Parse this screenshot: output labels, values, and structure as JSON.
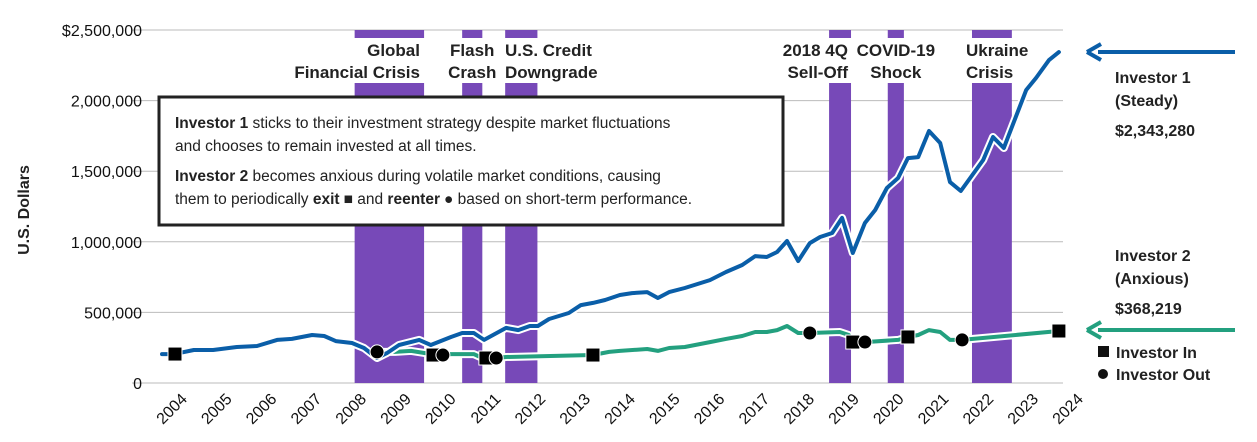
{
  "chart_data": {
    "type": "line",
    "ylabel": "U.S. Dollars",
    "ylim": [
      0,
      2500000
    ],
    "xlim": [
      2004,
      2024
    ],
    "grid": true,
    "y_ticks": [
      "$2,500,000",
      "2,000,000",
      "1,500,000",
      "1,000,000",
      "500,000",
      "0"
    ],
    "y_tick_values": [
      2500000,
      2000000,
      1500000,
      1000000,
      500000,
      0
    ],
    "x_ticks": [
      "2004",
      "2005",
      "2006",
      "2007",
      "2008",
      "2009",
      "2010",
      "2011",
      "2012",
      "2013",
      "2014",
      "2015",
      "2016",
      "2017",
      "2018",
      "2019",
      "2020",
      "2021",
      "2022",
      "2023",
      "2024"
    ],
    "colors": {
      "investor1": "#0a5ea8",
      "investor2": "#23a07f",
      "events": "#7749b8"
    },
    "events": [
      {
        "label": [
          "Global",
          "Financial Crisis"
        ],
        "start": 2008.3,
        "end": 2009.85
      },
      {
        "label": [
          "Flash",
          "Crash"
        ],
        "start": 2010.7,
        "end": 2011.15
      },
      {
        "label": [
          "U.S. Credit",
          "Downgrade"
        ],
        "start": 2011.66,
        "end": 2012.38
      },
      {
        "label": [
          "2018 4Q",
          "Sell-Off"
        ],
        "start": 2018.89,
        "end": 2019.38
      },
      {
        "label": [
          "COVID-19",
          "Shock"
        ],
        "start": 2020.2,
        "end": 2020.56
      },
      {
        "label": [
          "Ukraine",
          "Crisis"
        ],
        "start": 2022.08,
        "end": 2022.97
      }
    ],
    "series": [
      {
        "name": "Investor 1 (Steady)",
        "final_label": "$2,343,280",
        "x": [
          2004.0,
          2004.27,
          2004.71,
          2005.14,
          2005.67,
          2006.12,
          2006.57,
          2006.9,
          2007.35,
          2007.62,
          2007.88,
          2008.24,
          2008.51,
          2008.8,
          2009.02,
          2009.29,
          2009.74,
          2010.0,
          2010.45,
          2010.7,
          2010.96,
          2011.19,
          2011.68,
          2011.95,
          2012.21,
          2012.39,
          2012.64,
          2013.08,
          2013.35,
          2013.62,
          2013.89,
          2014.22,
          2014.49,
          2014.83,
          2015.07,
          2015.32,
          2015.67,
          2016.23,
          2016.59,
          2016.95,
          2017.24,
          2017.5,
          2017.73,
          2017.95,
          2018.2,
          2018.46,
          2018.69,
          2018.96,
          2019.18,
          2019.42,
          2019.69,
          2019.92,
          2020.18,
          2020.43,
          2020.65,
          2020.88,
          2021.12,
          2021.37,
          2021.59,
          2021.83,
          2022.33,
          2022.55,
          2022.79,
          2023.29,
          2023.51,
          2023.8,
          2024.02
        ],
        "y": [
          205000,
          205000,
          234000,
          234000,
          255000,
          262000,
          305000,
          312000,
          340000,
          333000,
          297000,
          283000,
          248000,
          177000,
          212000,
          269000,
          305000,
          269000,
          326000,
          354000,
          354000,
          305000,
          390000,
          375000,
          404000,
          404000,
          453000,
          496000,
          552000,
          567000,
          588000,
          623000,
          637000,
          644000,
          602000,
          644000,
          673000,
          729000,
          786000,
          836000,
          899000,
          892000,
          928000,
          1006000,
          864000,
          991000,
          1034000,
          1062000,
          1169000,
          921000,
          1133000,
          1225000,
          1381000,
          1452000,
          1593000,
          1600000,
          1785000,
          1700000,
          1423000,
          1360000,
          1579000,
          1742000,
          1664000,
          2075000,
          2160000,
          2287000,
          2343280
        ]
      },
      {
        "name": "Investor 2 (Anxious)",
        "final_label": "$368,219",
        "x": [
          2008.8,
          2009.2,
          2009.56,
          2009.87,
          2010.05,
          2010.27,
          2010.45,
          2010.96,
          2011.1,
          2011.23,
          2011.46,
          2011.68,
          2013.62,
          2013.98,
          2014.22,
          2014.83,
          2015.07,
          2015.32,
          2015.67,
          2016.23,
          2016.59,
          2016.95,
          2017.24,
          2017.5,
          2017.73,
          2017.95,
          2018.2,
          2018.46,
          2019.13,
          2019.33,
          2019.42,
          2019.69,
          2020.43,
          2020.65,
          2020.88,
          2021.12,
          2021.37,
          2021.59,
          2021.86,
          2024.02
        ],
        "y": [
          220000,
          220000,
          227000,
          212000,
          198000,
          198000,
          205000,
          205000,
          184000,
          177000,
          177000,
          184000,
          198000,
          220000,
          227000,
          241000,
          227000,
          248000,
          255000,
          290000,
          312000,
          333000,
          361000,
          361000,
          375000,
          404000,
          354000,
          354000,
          361000,
          340000,
          290000,
          290000,
          305000,
          326000,
          340000,
          375000,
          361000,
          305000,
          305000,
          368219
        ]
      }
    ],
    "markers": {
      "investor_in": [
        [
          2004.29,
          205000
        ],
        [
          2010.05,
          198000
        ],
        [
          2011.23,
          177000
        ],
        [
          2013.62,
          198000
        ],
        [
          2019.42,
          290000
        ],
        [
          2020.65,
          326000
        ],
        [
          2024.02,
          368219
        ]
      ],
      "investor_out": [
        [
          2008.8,
          220000
        ],
        [
          2010.27,
          198000
        ],
        [
          2011.46,
          177000
        ],
        [
          2018.46,
          354000
        ],
        [
          2019.69,
          290000
        ],
        [
          2021.86,
          305000
        ]
      ]
    },
    "legend": {
      "in": "Investor In",
      "out": "Investor Out"
    },
    "annotations": {
      "investor1": {
        "name": "Investor 1",
        "sub": "(Steady)",
        "value": "$2,343,280"
      },
      "investor2": {
        "name": "Investor 2",
        "sub": "(Anxious)",
        "value": "$368,219"
      }
    },
    "callout": {
      "line1_bold": "Investor 1",
      "line1_rest": " sticks to their investment strategy despite market fluctuations",
      "line2": "and chooses to remain invested at all times.",
      "line3_bold": "Investor 2",
      "line3_rest": " becomes anxious during volatile market conditions, causing",
      "line4_a": "them to periodically ",
      "line4_exit": "exit",
      "line4_b": " and ",
      "line4_reenter": "reenter",
      "line4_c": " based on short-term performance."
    }
  }
}
